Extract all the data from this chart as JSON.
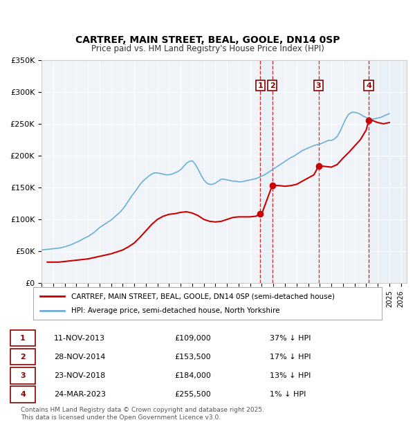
{
  "title": "CARTREF, MAIN STREET, BEAL, GOOLE, DN14 0SP",
  "subtitle": "Price paid vs. HM Land Registry's House Price Index (HPI)",
  "ylabel": "",
  "ylim": [
    0,
    350000
  ],
  "yticks": [
    0,
    50000,
    100000,
    150000,
    200000,
    250000,
    300000,
    350000
  ],
  "ytick_labels": [
    "£0",
    "£50K",
    "£100K",
    "£150K",
    "£200K",
    "£250K",
    "£300K",
    "£350K"
  ],
  "xlim_start": 1995.0,
  "xlim_end": 2026.5,
  "hpi_color": "#6baed6",
  "price_color": "#cc0000",
  "vline_color": "#cc0000",
  "background_color": "#f0f4f8",
  "plot_bg_color": "#f0f4f8",
  "legend_label_price": "CARTREF, MAIN STREET, BEAL, GOOLE, DN14 0SP (semi-detached house)",
  "legend_label_hpi": "HPI: Average price, semi-detached house, North Yorkshire",
  "sales": [
    {
      "num": 1,
      "date": "11-NOV-2013",
      "price": 109000,
      "pct": "37%",
      "x": 2013.87
    },
    {
      "num": 2,
      "date": "28-NOV-2014",
      "price": 153500,
      "pct": "17%",
      "x": 2014.91
    },
    {
      "num": 3,
      "date": "23-NOV-2018",
      "price": 184000,
      "pct": "13%",
      "x": 2018.9
    },
    {
      "num": 4,
      "date": "24-MAR-2023",
      "price": 255500,
      "pct": "1%",
      "x": 2023.23
    }
  ],
  "footer": "Contains HM Land Registry data © Crown copyright and database right 2025.\nThis data is licensed under the Open Government Licence v3.0.",
  "hpi_data_x": [
    1995.0,
    1995.25,
    1995.5,
    1995.75,
    1996.0,
    1996.25,
    1996.5,
    1996.75,
    1997.0,
    1997.25,
    1997.5,
    1997.75,
    1998.0,
    1998.25,
    1998.5,
    1998.75,
    1999.0,
    1999.25,
    1999.5,
    1999.75,
    2000.0,
    2000.25,
    2000.5,
    2000.75,
    2001.0,
    2001.25,
    2001.5,
    2001.75,
    2002.0,
    2002.25,
    2002.5,
    2002.75,
    2003.0,
    2003.25,
    2003.5,
    2003.75,
    2004.0,
    2004.25,
    2004.5,
    2004.75,
    2005.0,
    2005.25,
    2005.5,
    2005.75,
    2006.0,
    2006.25,
    2006.5,
    2006.75,
    2007.0,
    2007.25,
    2007.5,
    2007.75,
    2008.0,
    2008.25,
    2008.5,
    2008.75,
    2009.0,
    2009.25,
    2009.5,
    2009.75,
    2010.0,
    2010.25,
    2010.5,
    2010.75,
    2011.0,
    2011.25,
    2011.5,
    2011.75,
    2012.0,
    2012.25,
    2012.5,
    2012.75,
    2013.0,
    2013.25,
    2013.5,
    2013.75,
    2014.0,
    2014.25,
    2014.5,
    2014.75,
    2015.0,
    2015.25,
    2015.5,
    2015.75,
    2016.0,
    2016.25,
    2016.5,
    2016.75,
    2017.0,
    2017.25,
    2017.5,
    2017.75,
    2018.0,
    2018.25,
    2018.5,
    2018.75,
    2019.0,
    2019.25,
    2019.5,
    2019.75,
    2020.0,
    2020.25,
    2020.5,
    2020.75,
    2021.0,
    2021.25,
    2021.5,
    2021.75,
    2022.0,
    2022.25,
    2022.5,
    2022.75,
    2023.0,
    2023.25,
    2023.5,
    2023.75,
    2024.0,
    2024.25,
    2024.5,
    2024.75,
    2025.0
  ],
  "hpi_data_y": [
    52000,
    52500,
    53000,
    53500,
    54000,
    54500,
    55000,
    55800,
    57000,
    58500,
    60000,
    62000,
    64000,
    66000,
    68500,
    71000,
    73000,
    76000,
    79000,
    83000,
    87000,
    90000,
    93000,
    96000,
    99000,
    103000,
    107000,
    111000,
    116000,
    122000,
    129000,
    136000,
    142000,
    148000,
    155000,
    160000,
    164000,
    168000,
    171000,
    173000,
    173000,
    172000,
    171000,
    170000,
    170000,
    171000,
    173000,
    175000,
    178000,
    183000,
    188000,
    191000,
    192000,
    187000,
    179000,
    170000,
    162000,
    157000,
    155000,
    155000,
    157000,
    160000,
    163000,
    163000,
    162000,
    161000,
    160000,
    160000,
    159000,
    159000,
    160000,
    161000,
    162000,
    163000,
    164000,
    166000,
    168000,
    170000,
    173000,
    176000,
    179000,
    182000,
    185000,
    188000,
    191000,
    194000,
    197000,
    199000,
    202000,
    205000,
    208000,
    210000,
    212000,
    214000,
    216000,
    217000,
    218000,
    220000,
    222000,
    224000,
    224000,
    226000,
    230000,
    238000,
    248000,
    258000,
    265000,
    268000,
    268000,
    267000,
    265000,
    262000,
    260000,
    258000,
    257000,
    258000,
    259000,
    260000,
    262000,
    264000,
    266000
  ],
  "price_data_x": [
    1995.5,
    1996.0,
    1996.5,
    1997.0,
    1997.5,
    1998.0,
    1998.5,
    1999.0,
    1999.5,
    2000.0,
    2000.5,
    2001.0,
    2001.5,
    2002.0,
    2002.5,
    2003.0,
    2003.5,
    2004.0,
    2004.5,
    2005.0,
    2005.5,
    2006.0,
    2006.5,
    2007.0,
    2007.5,
    2008.0,
    2008.5,
    2009.0,
    2009.5,
    2010.0,
    2010.5,
    2011.0,
    2011.5,
    2012.0,
    2012.5,
    2013.0,
    2013.5,
    2013.87,
    2014.0,
    2014.91,
    2015.0,
    2015.5,
    2016.0,
    2016.5,
    2017.0,
    2017.5,
    2018.0,
    2018.5,
    2018.9,
    2019.0,
    2019.5,
    2020.0,
    2020.5,
    2021.0,
    2021.5,
    2022.0,
    2022.5,
    2023.0,
    2023.23,
    2023.5,
    2024.0,
    2024.5,
    2025.0
  ],
  "price_data_y": [
    33000,
    33000,
    33000,
    34000,
    35000,
    36000,
    37000,
    38000,
    40000,
    42000,
    44000,
    46000,
    49000,
    52000,
    57000,
    63000,
    72000,
    82000,
    92000,
    100000,
    105000,
    108000,
    109000,
    111000,
    112000,
    110000,
    106000,
    100000,
    97000,
    96000,
    97000,
    100000,
    103000,
    104000,
    104000,
    104000,
    105000,
    109000,
    109000,
    153500,
    153500,
    153000,
    152000,
    153000,
    155000,
    160000,
    165000,
    170000,
    184000,
    184000,
    183000,
    182000,
    186000,
    196000,
    205000,
    215000,
    225000,
    240000,
    255500,
    255500,
    252000,
    250000,
    252000
  ]
}
